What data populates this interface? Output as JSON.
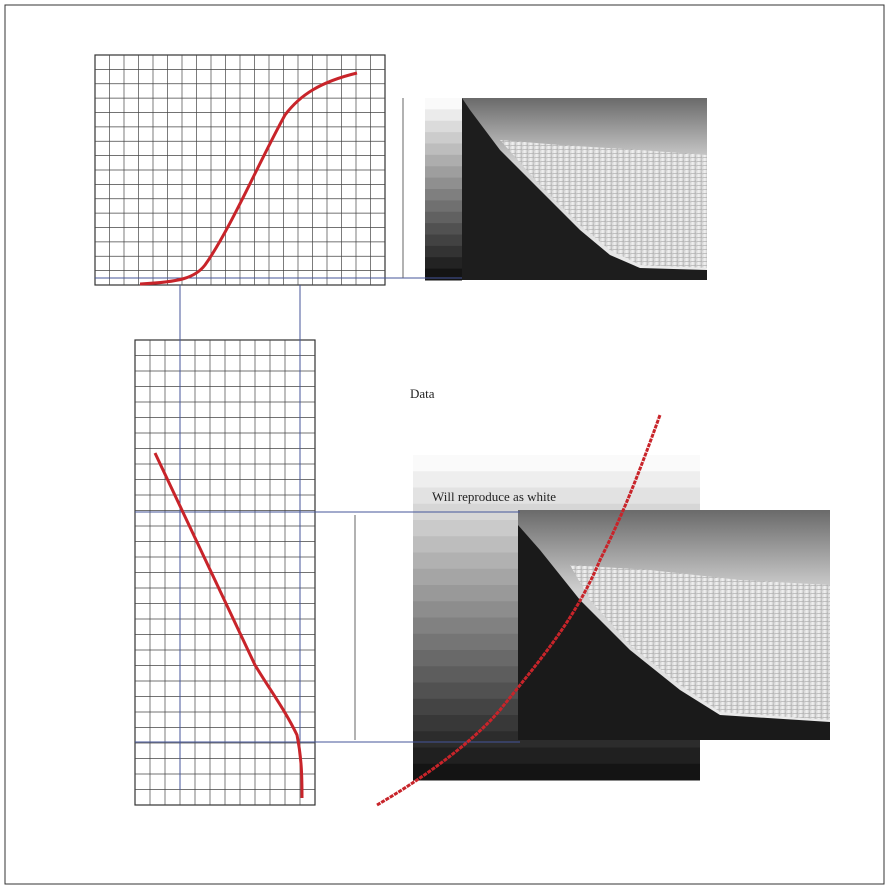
{
  "annotations": {
    "data": "Data",
    "white_note": "Will reproduce as white"
  }
}
